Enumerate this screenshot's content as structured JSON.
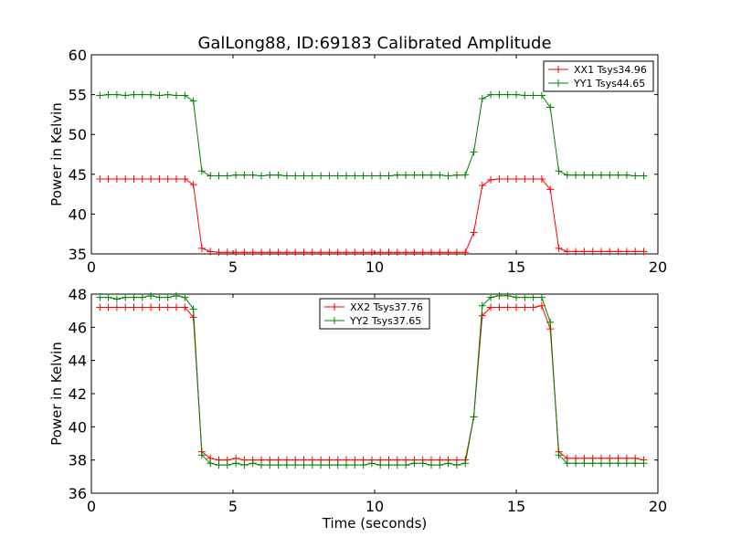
{
  "figure_title": "GalLong88, ID:69183 Calibrated Amplitude",
  "colors": {
    "xx": "#ff0000",
    "yy": "#008000"
  },
  "chart_data": [
    {
      "type": "line",
      "title": "GalLong88, ID:69183 Calibrated Amplitude",
      "xlabel": "",
      "ylabel": "Power in Kelvin",
      "xlim": [
        0,
        20
      ],
      "ylim": [
        35,
        60
      ],
      "xticks": [
        0,
        5,
        10,
        15,
        20
      ],
      "yticks": [
        35,
        40,
        45,
        50,
        55,
        60
      ],
      "grid": false,
      "legend_position": "top-right",
      "x": [
        0.3,
        0.6,
        0.9,
        1.2,
        1.5,
        1.8,
        2.1,
        2.4,
        2.7,
        3.0,
        3.3,
        3.6,
        3.9,
        4.2,
        4.5,
        4.8,
        5.1,
        5.4,
        5.7,
        6.0,
        6.3,
        6.6,
        6.9,
        7.2,
        7.5,
        7.8,
        8.1,
        8.4,
        8.7,
        9.0,
        9.3,
        9.6,
        9.9,
        10.2,
        10.5,
        10.8,
        11.1,
        11.4,
        11.7,
        12.0,
        12.3,
        12.6,
        12.9,
        13.2,
        13.5,
        13.8,
        14.1,
        14.4,
        14.7,
        15.0,
        15.3,
        15.6,
        15.9,
        16.2,
        16.5,
        16.8,
        17.1,
        17.4,
        17.7,
        18.0,
        18.3,
        18.6,
        18.9,
        19.2,
        19.5
      ],
      "series": [
        {
          "name": "XX1 Tsys34.96",
          "color_key": "xx",
          "values": [
            44.4,
            44.4,
            44.4,
            44.4,
            44.4,
            44.4,
            44.4,
            44.4,
            44.4,
            44.4,
            44.4,
            43.7,
            35.7,
            35.3,
            35.2,
            35.2,
            35.2,
            35.2,
            35.2,
            35.2,
            35.2,
            35.2,
            35.2,
            35.2,
            35.2,
            35.2,
            35.2,
            35.2,
            35.2,
            35.2,
            35.2,
            35.2,
            35.2,
            35.2,
            35.2,
            35.2,
            35.2,
            35.2,
            35.2,
            35.2,
            35.2,
            35.2,
            35.2,
            35.2,
            37.7,
            43.6,
            44.3,
            44.4,
            44.4,
            44.4,
            44.4,
            44.4,
            44.4,
            43.1,
            35.7,
            35.3,
            35.3,
            35.3,
            35.3,
            35.3,
            35.3,
            35.3,
            35.3,
            35.3,
            35.3
          ]
        },
        {
          "name": "YY1 Tsys44.65",
          "color_key": "yy",
          "values": [
            54.9,
            55.0,
            55.0,
            54.9,
            55.0,
            55.0,
            55.0,
            54.9,
            55.0,
            54.9,
            54.9,
            54.2,
            45.4,
            44.8,
            44.8,
            44.8,
            44.9,
            44.9,
            44.9,
            44.8,
            44.9,
            44.9,
            44.8,
            44.8,
            44.8,
            44.8,
            44.8,
            44.8,
            44.8,
            44.8,
            44.8,
            44.8,
            44.8,
            44.8,
            44.8,
            44.9,
            44.9,
            44.9,
            44.9,
            44.9,
            44.9,
            44.8,
            44.9,
            44.9,
            47.8,
            54.5,
            55.0,
            55.0,
            55.0,
            55.0,
            54.9,
            54.9,
            54.9,
            53.4,
            45.4,
            44.9,
            44.9,
            44.9,
            44.9,
            44.9,
            44.9,
            44.9,
            44.9,
            44.8,
            44.8
          ]
        }
      ]
    },
    {
      "type": "line",
      "title": "",
      "xlabel": "Time (seconds)",
      "ylabel": "Power in Kelvin",
      "xlim": [
        0,
        20
      ],
      "ylim": [
        36,
        48
      ],
      "xticks": [
        0,
        5,
        10,
        15,
        20
      ],
      "yticks": [
        36,
        38,
        40,
        42,
        44,
        46,
        48
      ],
      "grid": false,
      "legend_position": "top-center",
      "x": [
        0.3,
        0.6,
        0.9,
        1.2,
        1.5,
        1.8,
        2.1,
        2.4,
        2.7,
        3.0,
        3.3,
        3.6,
        3.9,
        4.2,
        4.5,
        4.8,
        5.1,
        5.4,
        5.7,
        6.0,
        6.3,
        6.6,
        6.9,
        7.2,
        7.5,
        7.8,
        8.1,
        8.4,
        8.7,
        9.0,
        9.3,
        9.6,
        9.9,
        10.2,
        10.5,
        10.8,
        11.1,
        11.4,
        11.7,
        12.0,
        12.3,
        12.6,
        12.9,
        13.2,
        13.5,
        13.8,
        14.1,
        14.4,
        14.7,
        15.0,
        15.3,
        15.6,
        15.9,
        16.2,
        16.5,
        16.8,
        17.1,
        17.4,
        17.7,
        18.0,
        18.3,
        18.6,
        18.9,
        19.2,
        19.5
      ],
      "series": [
        {
          "name": "XX2 Tsys37.76",
          "color_key": "xx",
          "values": [
            47.2,
            47.2,
            47.2,
            47.2,
            47.2,
            47.2,
            47.2,
            47.2,
            47.2,
            47.2,
            47.2,
            46.6,
            38.5,
            38.1,
            38.0,
            38.0,
            38.1,
            38.0,
            38.0,
            38.0,
            38.0,
            38.0,
            38.0,
            38.0,
            38.0,
            38.0,
            38.0,
            38.0,
            38.0,
            38.0,
            38.0,
            38.0,
            38.0,
            38.0,
            38.0,
            38.0,
            38.0,
            38.0,
            38.0,
            38.0,
            38.0,
            38.0,
            38.0,
            38.0,
            40.6,
            46.7,
            47.2,
            47.2,
            47.2,
            47.2,
            47.2,
            47.2,
            47.3,
            45.9,
            38.5,
            38.1,
            38.1,
            38.1,
            38.1,
            38.1,
            38.1,
            38.1,
            38.1,
            38.1,
            38.0
          ]
        },
        {
          "name": "YY2 Tsys37.65",
          "color_key": "yy",
          "values": [
            47.8,
            47.8,
            47.7,
            47.8,
            47.8,
            47.8,
            47.9,
            47.8,
            47.8,
            47.9,
            47.8,
            47.1,
            38.3,
            37.8,
            37.7,
            37.7,
            37.8,
            37.7,
            37.8,
            37.7,
            37.7,
            37.7,
            37.7,
            37.7,
            37.7,
            37.7,
            37.7,
            37.7,
            37.7,
            37.7,
            37.7,
            37.7,
            37.8,
            37.7,
            37.7,
            37.7,
            37.7,
            37.8,
            37.8,
            37.7,
            37.7,
            37.8,
            37.7,
            37.8,
            40.6,
            47.3,
            47.8,
            47.9,
            47.9,
            47.8,
            47.8,
            47.8,
            47.8,
            46.3,
            38.3,
            37.8,
            37.8,
            37.8,
            37.8,
            37.8,
            37.8,
            37.8,
            37.8,
            37.8,
            37.8
          ]
        }
      ]
    }
  ]
}
